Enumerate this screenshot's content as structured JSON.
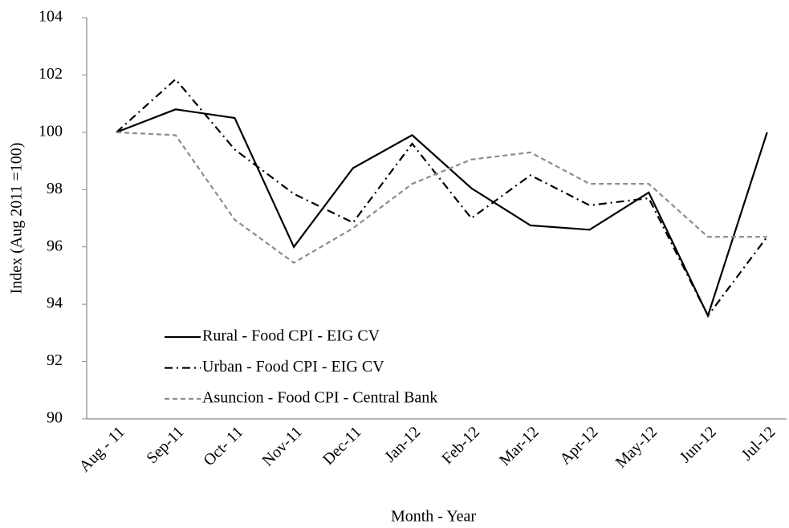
{
  "chart_data": {
    "type": "line",
    "x_label": "Month - Year",
    "y_label": "Index (Aug 2011 =100)",
    "categories": [
      "Aug - 11",
      "Sep-11",
      "Oct- 11",
      "Nov-11",
      "Dec-11",
      "Jan-12",
      "Feb-12",
      "Mar-12",
      "Apr-12",
      "May-12",
      "Jun-12",
      "Jul-12"
    ],
    "series": [
      {
        "name": "Rural - Food CPI - EIG CV",
        "color": "#000000",
        "style": "solid",
        "values": [
          100,
          100.8,
          100.5,
          96.0,
          98.75,
          99.9,
          98.05,
          96.75,
          96.6,
          97.9,
          93.6,
          100
        ]
      },
      {
        "name": "Urban - Food CPI - EIG CV",
        "color": "#000000",
        "style": "dashdot",
        "values": [
          100,
          101.85,
          99.4,
          97.85,
          96.85,
          99.6,
          97.0,
          98.5,
          97.45,
          97.7,
          93.6,
          96.35
        ]
      },
      {
        "name": "Asuncion - Food CPI - Central Bank",
        "color": "#8c8c8c",
        "style": "dashed",
        "values": [
          100,
          99.9,
          96.95,
          95.45,
          96.65,
          98.2,
          99.05,
          99.3,
          98.2,
          98.2,
          96.35,
          96.35
        ]
      }
    ],
    "ylim": [
      90,
      104
    ],
    "yticks": [
      90,
      92,
      94,
      96,
      98,
      100,
      102,
      104
    ],
    "grid": false,
    "legend": "lower-left"
  }
}
